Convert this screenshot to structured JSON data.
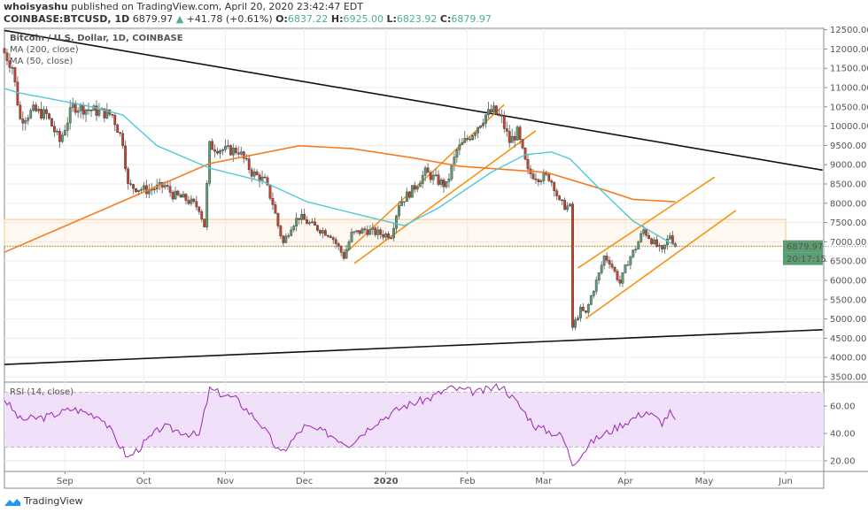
{
  "header": {
    "author": "whoisyashu",
    "published": "published on TradingView.com, April 20, 2020 23:42:47 EDT",
    "symbol": "COINBASE:BTCUSD, 1D",
    "last": "6879.97",
    "change": "+41.78 (+0.61%)",
    "o_label": "O:",
    "o": "6837.22",
    "h_label": "H:",
    "h": "6925.00",
    "l_label": "L:",
    "l": "6823.92",
    "c_label": "C:",
    "c": "6879.97"
  },
  "logo_text": "TradingView",
  "chart_data": [
    {
      "type": "candlestick",
      "title": "Bitcoin / U.S. Dollar, 1D, COINBASE",
      "legend": [
        "MA (200, close)",
        "MA (50, close)"
      ],
      "ylim": [
        3500,
        12500
      ],
      "y_ticks": [
        "12500.00",
        "12000.00",
        "11500.00",
        "11000.00",
        "10500.00",
        "10000.00",
        "9500.00",
        "9000.00",
        "8500.00",
        "8000.00",
        "7500.00",
        "7000.00",
        "6500.00",
        "6000.00",
        "5500.00",
        "5000.00",
        "4500.00",
        "4000.00",
        "3500.00"
      ],
      "x_ticks": [
        [
          "Sep",
          "2019-09-01"
        ],
        [
          "Oct",
          "2019-10-01"
        ],
        [
          "Nov",
          "2019-11-01"
        ],
        [
          "Dec",
          "2019-12-01"
        ],
        [
          "2020",
          "2020-01-01"
        ],
        [
          "Feb",
          "2020-02-01"
        ],
        [
          "Mar",
          "2020-03-01"
        ],
        [
          "Apr",
          "2020-04-01"
        ],
        [
          "May",
          "2020-05-01"
        ],
        [
          "Jun",
          "2020-06-01"
        ]
      ],
      "x_range": [
        "2019-08-09",
        "2020-06-20"
      ],
      "grid": true,
      "last_price_label": "6879.97",
      "countdown_label": "20:17:15",
      "colors": {
        "up": "#5d9d72",
        "down": "#c8412f",
        "ma200": "#f57c1f",
        "ma50": "#4fc8d8",
        "trend": "#111111",
        "channel": "#f7931a",
        "zone": "#f9c784"
      },
      "close_keypoints": [
        [
          "2019-08-09",
          11900
        ],
        [
          "2019-08-12",
          11550
        ],
        [
          "2019-08-15",
          10170
        ],
        [
          "2019-08-20",
          10400
        ],
        [
          "2019-08-25",
          10290
        ],
        [
          "2019-08-30",
          9600
        ],
        [
          "2019-09-04",
          10520
        ],
        [
          "2019-09-12",
          10400
        ],
        [
          "2019-09-19",
          10290
        ],
        [
          "2019-09-23",
          9600
        ],
        [
          "2019-09-25",
          8450
        ],
        [
          "2019-10-02",
          8340
        ],
        [
          "2019-10-09",
          8450
        ],
        [
          "2019-10-12",
          8220
        ],
        [
          "2019-10-17",
          8100
        ],
        [
          "2019-10-22",
          7880
        ],
        [
          "2019-10-24",
          7420
        ],
        [
          "2019-10-26",
          9490
        ],
        [
          "2019-11-01",
          9370
        ],
        [
          "2019-11-06",
          9370
        ],
        [
          "2019-11-11",
          8800
        ],
        [
          "2019-11-16",
          8570
        ],
        [
          "2019-11-19",
          8000
        ],
        [
          "2019-11-21",
          7420
        ],
        [
          "2019-11-23",
          6960
        ],
        [
          "2019-11-26",
          7420
        ],
        [
          "2019-11-29",
          7650
        ],
        [
          "2019-12-04",
          7420
        ],
        [
          "2019-12-11",
          7190
        ],
        [
          "2019-12-16",
          6620
        ],
        [
          "2019-12-19",
          7190
        ],
        [
          "2019-12-24",
          7310
        ],
        [
          "2019-12-31",
          7190
        ],
        [
          "2020-01-03",
          7190
        ],
        [
          "2020-01-06",
          8000
        ],
        [
          "2020-01-11",
          8340
        ],
        [
          "2020-01-16",
          8800
        ],
        [
          "2020-01-21",
          8570
        ],
        [
          "2020-01-24",
          8450
        ],
        [
          "2020-01-28",
          9370
        ],
        [
          "2020-02-03",
          9830
        ],
        [
          "2020-02-08",
          10290
        ],
        [
          "2020-02-11",
          10400
        ],
        [
          "2020-02-14",
          10170
        ],
        [
          "2020-02-17",
          9600
        ],
        [
          "2020-02-20",
          9830
        ],
        [
          "2020-02-24",
          8800
        ],
        [
          "2020-02-28",
          8680
        ],
        [
          "2020-03-03",
          8680
        ],
        [
          "2020-03-05",
          8450
        ],
        [
          "2020-03-07",
          8000
        ],
        [
          "2020-03-11",
          7880
        ],
        [
          "2020-03-12",
          4780
        ],
        [
          "2020-03-15",
          5240
        ],
        [
          "2020-03-17",
          5130
        ],
        [
          "2020-03-19",
          5590
        ],
        [
          "2020-03-22",
          6160
        ],
        [
          "2020-03-24",
          6620
        ],
        [
          "2020-03-26",
          6500
        ],
        [
          "2020-03-30",
          5930
        ],
        [
          "2020-04-02",
          6500
        ],
        [
          "2020-04-05",
          6850
        ],
        [
          "2020-04-08",
          7310
        ],
        [
          "2020-04-12",
          6960
        ],
        [
          "2020-04-15",
          6730
        ],
        [
          "2020-04-18",
          7190
        ],
        [
          "2020-04-20",
          6879.97
        ]
      ],
      "ma200": [
        [
          "2019-08-09",
          6730
        ],
        [
          "2019-10-26",
          9030
        ],
        [
          "2019-11-29",
          9490
        ],
        [
          "2019-12-19",
          9420
        ],
        [
          "2020-01-12",
          9170
        ],
        [
          "2020-01-29",
          8960
        ],
        [
          "2020-03-02",
          8800
        ],
        [
          "2020-03-22",
          8390
        ],
        [
          "2020-04-04",
          8100
        ],
        [
          "2020-04-20",
          8040
        ]
      ],
      "ma50": [
        [
          "2019-08-09",
          10980
        ],
        [
          "2019-08-14",
          10870
        ],
        [
          "2019-09-10",
          10520
        ],
        [
          "2019-09-23",
          10290
        ],
        [
          "2019-10-06",
          9490
        ],
        [
          "2019-10-26",
          8910
        ],
        [
          "2019-11-15",
          8570
        ],
        [
          "2019-12-02",
          8040
        ],
        [
          "2019-12-25",
          7650
        ],
        [
          "2020-01-08",
          7420
        ],
        [
          "2020-01-21",
          7880
        ],
        [
          "2020-02-10",
          8800
        ],
        [
          "2020-02-23",
          9260
        ],
        [
          "2020-03-04",
          9330
        ],
        [
          "2020-03-11",
          9150
        ],
        [
          "2020-03-22",
          8390
        ],
        [
          "2020-04-04",
          7540
        ],
        [
          "2020-04-20",
          6900
        ]
      ],
      "trendlines": [
        {
          "kind": "trend",
          "from": [
            "2019-08-09",
            12480
          ],
          "to": [
            "2020-06-15",
            8860
          ]
        },
        {
          "kind": "trend",
          "from": [
            "2019-08-09",
            3820
          ],
          "to": [
            "2020-06-15",
            4720
          ]
        },
        {
          "kind": "channel",
          "from": [
            "2019-12-17",
            6730
          ],
          "to": [
            "2020-02-15",
            10560
          ]
        },
        {
          "kind": "channel",
          "from": [
            "2019-12-20",
            6440
          ],
          "to": [
            "2020-02-27",
            9880
          ]
        },
        {
          "kind": "channel",
          "from": [
            "2020-03-14",
            6320
          ],
          "to": [
            "2020-05-05",
            8680
          ]
        },
        {
          "kind": "channel",
          "from": [
            "2020-03-17",
            5010
          ],
          "to": [
            "2020-05-13",
            7810
          ]
        }
      ],
      "zone": {
        "from": "2019-08-09",
        "to": "2020-06-01",
        "top": 7580,
        "bottom": 6890
      }
    },
    {
      "type": "line",
      "title": "RSI (14, close)",
      "ylim": [
        10,
        80
      ],
      "band": [
        30,
        70
      ],
      "y_ticks": [
        "60.00",
        "40.00",
        "20.00"
      ],
      "color": "#9c27b0",
      "band_color": "#f0e0fa",
      "keypoints": [
        [
          "2019-08-09",
          65
        ],
        [
          "2019-08-15",
          50
        ],
        [
          "2019-08-25",
          52
        ],
        [
          "2019-09-04",
          58
        ],
        [
          "2019-09-15",
          52
        ],
        [
          "2019-09-25",
          22
        ],
        [
          "2019-10-08",
          45
        ],
        [
          "2019-10-22",
          38
        ],
        [
          "2019-10-26",
          72
        ],
        [
          "2019-11-05",
          65
        ],
        [
          "2019-11-14",
          48
        ],
        [
          "2019-11-22",
          25
        ],
        [
          "2019-12-01",
          45
        ],
        [
          "2019-12-10",
          40
        ],
        [
          "2019-12-18",
          32
        ],
        [
          "2019-12-28",
          48
        ],
        [
          "2020-01-08",
          60
        ],
        [
          "2020-01-18",
          66
        ],
        [
          "2020-01-25",
          73
        ],
        [
          "2020-02-05",
          70
        ],
        [
          "2020-02-14",
          75
        ],
        [
          "2020-02-20",
          62
        ],
        [
          "2020-02-27",
          45
        ],
        [
          "2020-03-08",
          38
        ],
        [
          "2020-03-12",
          18
        ],
        [
          "2020-03-20",
          35
        ],
        [
          "2020-04-01",
          48
        ],
        [
          "2020-04-09",
          56
        ],
        [
          "2020-04-15",
          48
        ],
        [
          "2020-04-18",
          55
        ],
        [
          "2020-04-20",
          50
        ]
      ]
    }
  ]
}
